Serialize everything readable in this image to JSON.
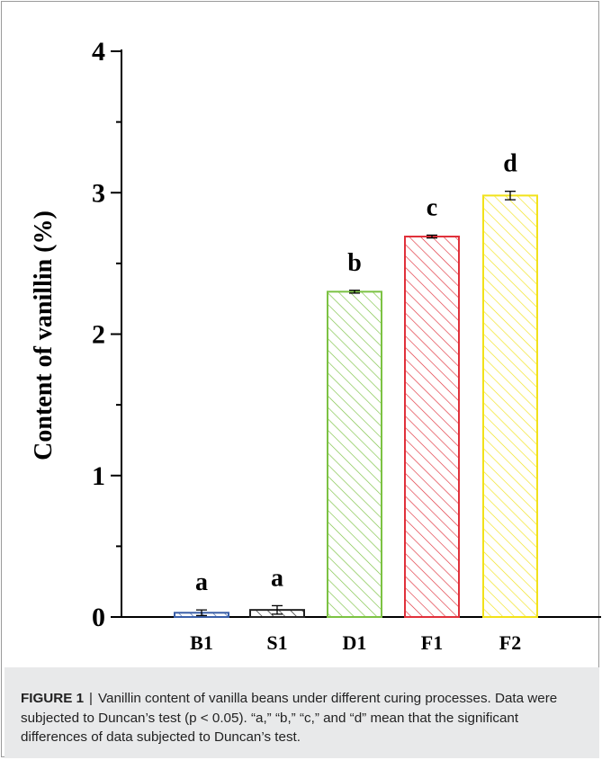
{
  "chart_data": {
    "type": "bar",
    "title": "",
    "xlabel": "",
    "ylabel": "Content of vanillin (%)",
    "ylim": [
      0,
      4
    ],
    "yticks": [
      "0",
      "1",
      "2",
      "3",
      "4"
    ],
    "categories": [
      "B1",
      "S1",
      "D1",
      "F1",
      "F2"
    ],
    "values": [
      0.03,
      0.05,
      2.3,
      2.69,
      2.98
    ],
    "errors": [
      0.02,
      0.03,
      0.01,
      0.01,
      0.03
    ],
    "significance_letters": [
      "a",
      "a",
      "b",
      "c",
      "d"
    ],
    "colors": [
      "#3a5fa8",
      "#222222",
      "#7cc243",
      "#e0313b",
      "#f2e21a"
    ],
    "pattern": "diagonal-hatch",
    "grid": false,
    "legend": "none"
  },
  "caption": {
    "label": "FIGURE 1",
    "separator": "|",
    "text": "Vanillin content of vanilla beans under different curing processes. Data were subjected to Duncan’s test (p < 0.05). “a,” “b,” “c,” and “d” mean that the significant differences of data subjected to Duncan’s test."
  }
}
